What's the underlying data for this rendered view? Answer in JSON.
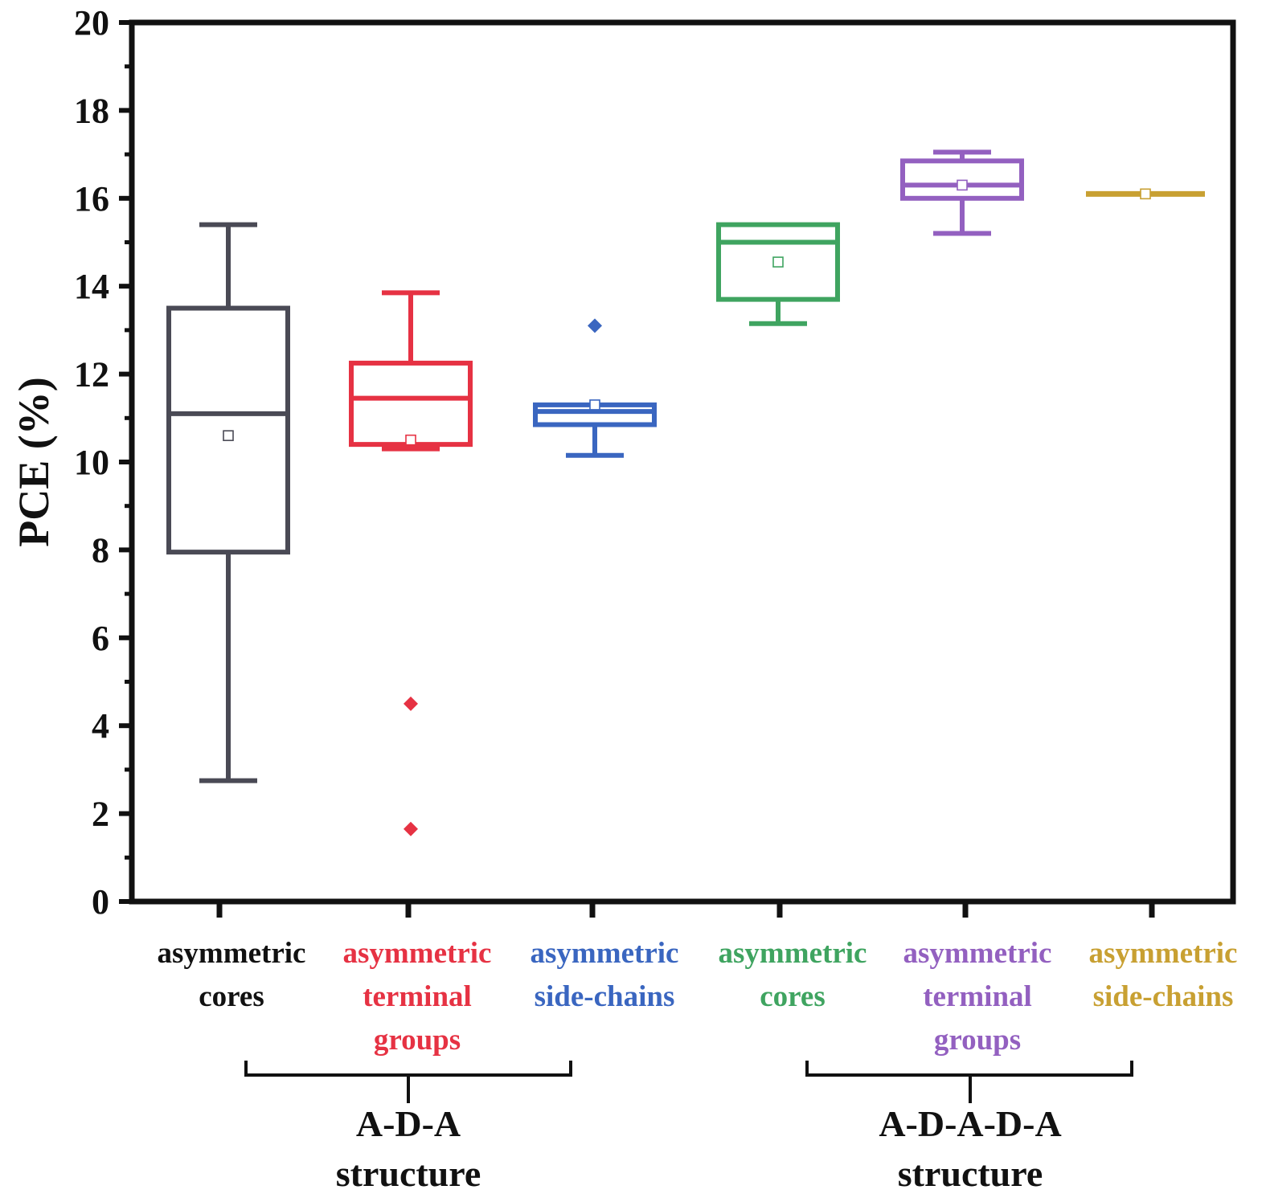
{
  "chart_data": {
    "type": "box",
    "ylabel": "PCE (%)",
    "ylim": [
      0,
      20
    ],
    "yticks": [
      0,
      2,
      4,
      6,
      8,
      10,
      12,
      14,
      16,
      18,
      20
    ],
    "grid": false,
    "categories": [
      {
        "lines": [
          "asymmetric",
          "cores"
        ],
        "color": "#4a4a55",
        "min": 2.75,
        "q1": 7.95,
        "median": 11.1,
        "q3": 13.5,
        "max": 15.4,
        "mean": 10.6,
        "outliers": []
      },
      {
        "lines": [
          "asymmetric",
          "terminal",
          "groups"
        ],
        "color": "#e63243",
        "min": 10.3,
        "q1": 10.4,
        "median": 11.45,
        "q3": 12.25,
        "max": 13.85,
        "mean": 10.5,
        "outliers": [
          4.5,
          1.65
        ]
      },
      {
        "lines": [
          "asymmetric",
          "side-chains"
        ],
        "color": "#3a66c0",
        "min": 10.15,
        "q1": 10.85,
        "median": 11.15,
        "q3": 11.3,
        "max": 11.3,
        "mean": 11.3,
        "outliers": [
          13.1
        ]
      },
      {
        "lines": [
          "asymmetric",
          "cores"
        ],
        "color": "#3fa460",
        "min": 13.15,
        "q1": 13.7,
        "median": 15.0,
        "q3": 15.4,
        "max": 15.4,
        "mean": 14.55,
        "outliers": []
      },
      {
        "lines": [
          "asymmetric",
          "terminal",
          "groups"
        ],
        "color": "#9360c0",
        "min": 15.2,
        "q1": 16.0,
        "median": 16.3,
        "q3": 16.85,
        "max": 17.05,
        "mean": 16.3,
        "outliers": []
      },
      {
        "lines": [
          "asymmetric",
          "side-chains"
        ],
        "color": "#c8a032",
        "min": 16.1,
        "q1": 16.1,
        "median": 16.1,
        "q3": 16.1,
        "max": 16.1,
        "mean": 16.1,
        "outliers": []
      }
    ],
    "groups": [
      {
        "lines": [
          "A-D-A",
          "structure"
        ],
        "from": 0,
        "to": 2
      },
      {
        "lines": [
          "A-D-A-D-A",
          "structure"
        ],
        "from": 3,
        "to": 5
      }
    ]
  }
}
